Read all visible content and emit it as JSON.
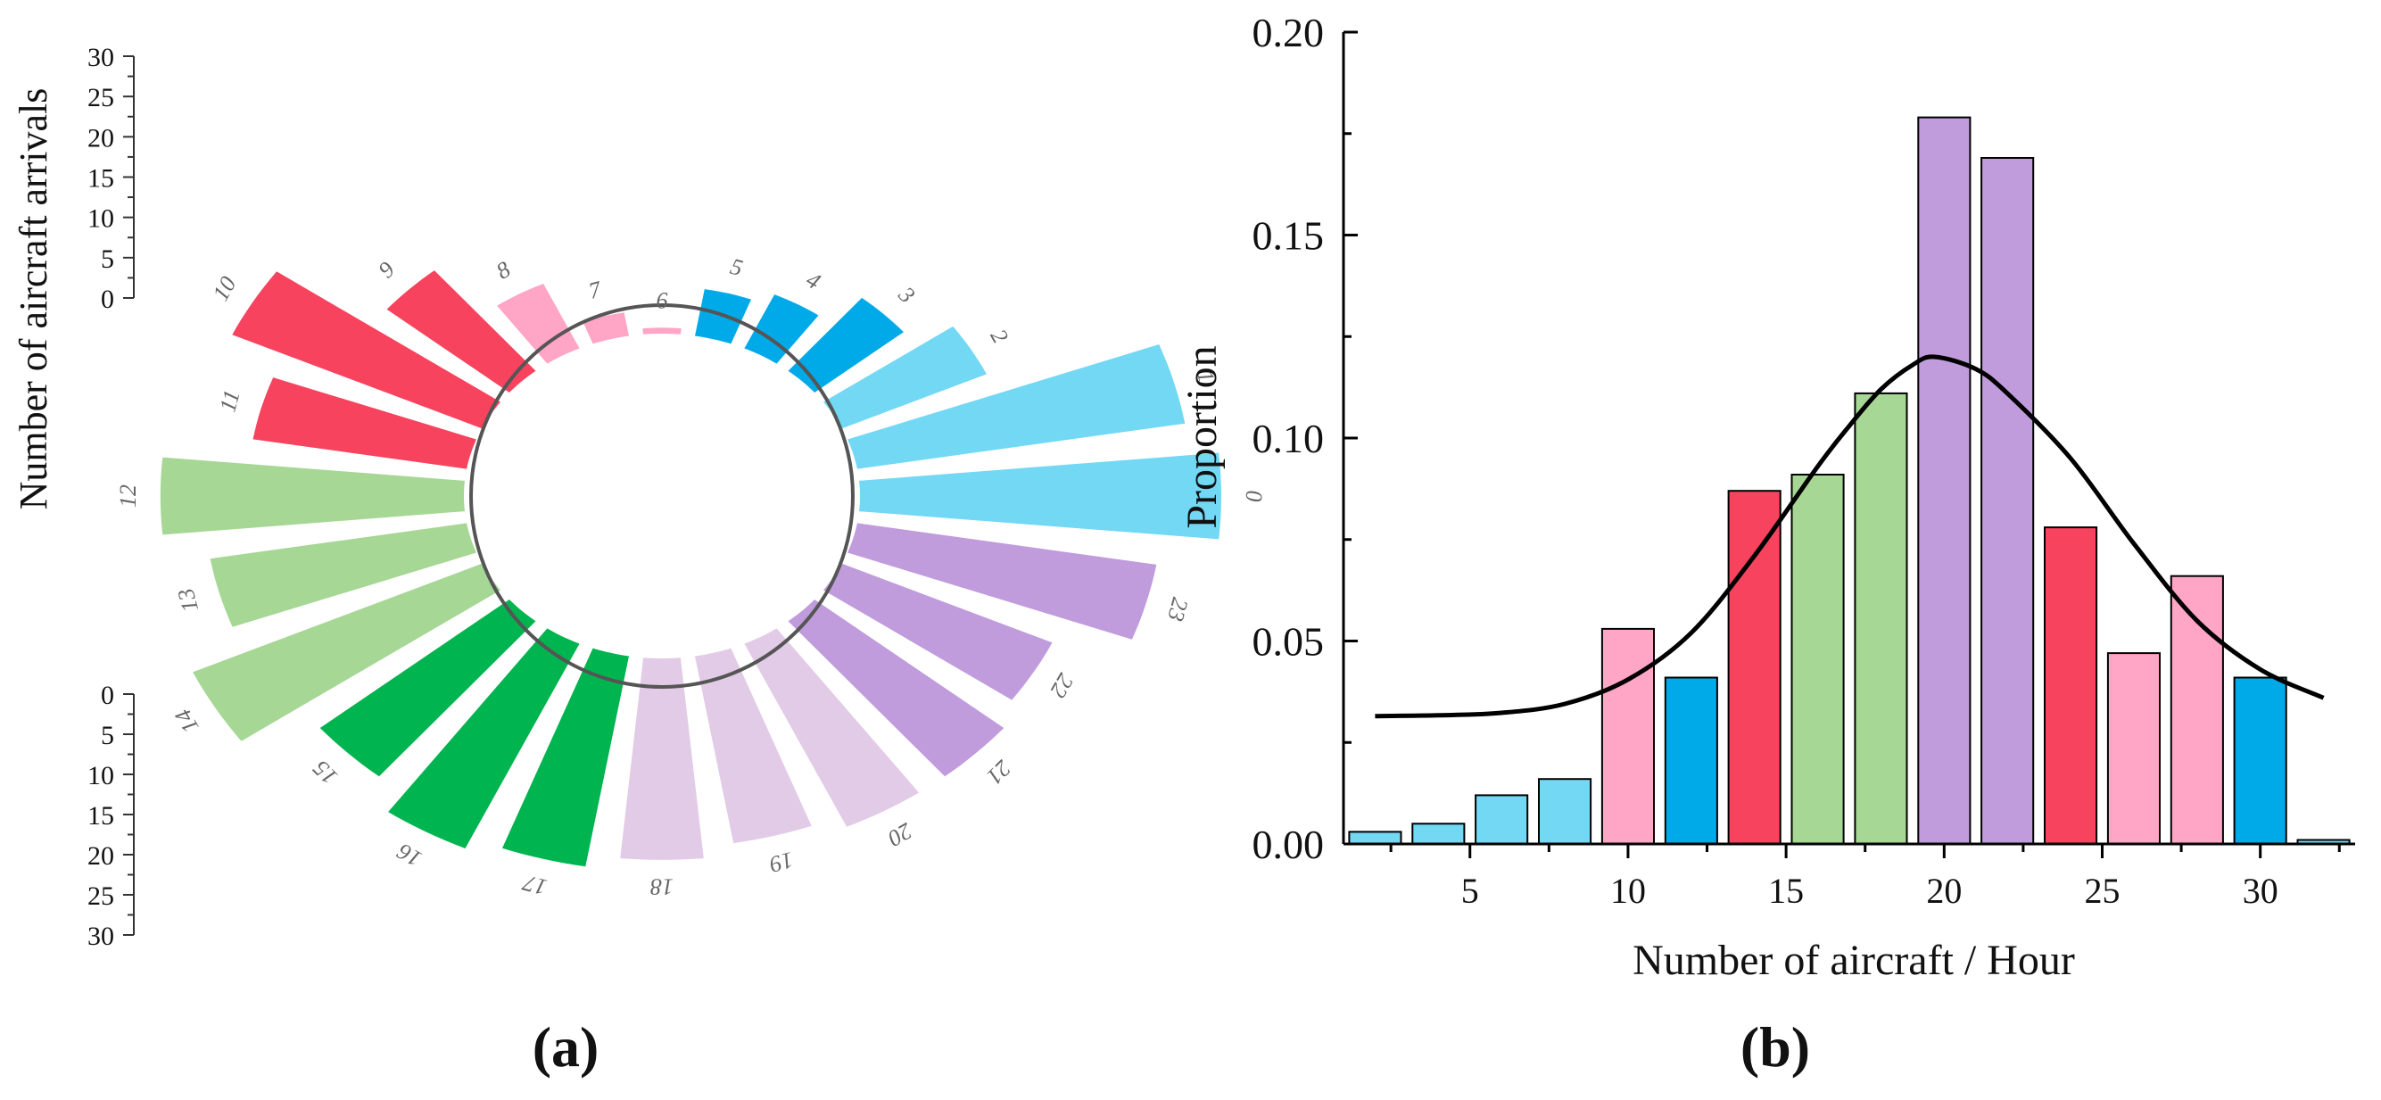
{
  "panels": {
    "a_label": "(a)",
    "b_label": "(b)"
  },
  "chart_data": [
    {
      "type": "radial-bar",
      "ylabel": "Number of aircraft arrivals",
      "scale_ticks": [
        "0",
        "5",
        "10",
        "15",
        "20",
        "25",
        "30"
      ],
      "categories": [
        "0",
        "1",
        "2",
        "3",
        "4",
        "5",
        "6",
        "7",
        "8",
        "9",
        "10",
        "11",
        "12",
        "13",
        "14",
        "15",
        "16",
        "17",
        "18",
        "19",
        "20",
        "21",
        "22",
        "23"
      ],
      "values": [
        25,
        23,
        11,
        8,
        5,
        4,
        0.5,
        2,
        6,
        11,
        19,
        15,
        21,
        18,
        22,
        17,
        19,
        18,
        17,
        16,
        17,
        17,
        16,
        21
      ],
      "colors": [
        "#72d8f4",
        "#72d8f4",
        "#72d8f4",
        "#00aae8",
        "#00aae8",
        "#00aae8",
        "#ffa5c6",
        "#ffa5c6",
        "#ffa5c6",
        "#f7435d",
        "#f7435d",
        "#f7435d",
        "#a6d795",
        "#a6d795",
        "#a6d795",
        "#00b44f",
        "#00b44f",
        "#00b44f",
        "#e2cbe6",
        "#e2cbe6",
        "#e2cbe6",
        "#c19cdd",
        "#c19cdd",
        "#c19cdd"
      ]
    },
    {
      "type": "bar",
      "xlabel": "Number of aircraft / Hour",
      "ylabel": "Proportion",
      "x_ticks": [
        "5",
        "10",
        "15",
        "20",
        "25",
        "30"
      ],
      "y_ticks": [
        "0.00",
        "0.05",
        "0.10",
        "0.15",
        "0.20"
      ],
      "xlim": [
        1,
        33
      ],
      "ylim": [
        0,
        0.2
      ],
      "bin_centers": [
        2,
        4,
        6,
        8,
        10,
        12,
        14,
        16,
        18,
        20,
        22,
        24,
        26,
        28,
        30,
        32
      ],
      "values": [
        0.003,
        0.005,
        0.012,
        0.016,
        0.053,
        0.041,
        0.087,
        0.091,
        0.111,
        0.179,
        0.169,
        0.078,
        0.047,
        0.066,
        0.041,
        0.001
      ],
      "colors": [
        "#72d8f4",
        "#72d8f4",
        "#72d8f4",
        "#72d8f4",
        "#ffa5c6",
        "#00aae8",
        "#f7435d",
        "#a6d795",
        "#a6d795",
        "#c19cdd",
        "#c19cdd",
        "#f7435d",
        "#ffa5c6",
        "#ffa5c6",
        "#00aae8",
        "#72d8f4"
      ],
      "fit_curve": {
        "x": [
          2,
          4,
          6,
          8,
          10,
          12,
          14,
          16,
          17,
          18,
          19,
          19.7,
          21,
          22,
          24,
          26,
          28,
          30,
          32
        ],
        "y": [
          0.0315,
          0.0317,
          0.0323,
          0.0345,
          0.0405,
          0.052,
          0.071,
          0.093,
          0.103,
          0.112,
          0.118,
          0.12,
          0.117,
          0.111,
          0.095,
          0.074,
          0.055,
          0.043,
          0.036
        ]
      },
      "grid": false
    }
  ]
}
